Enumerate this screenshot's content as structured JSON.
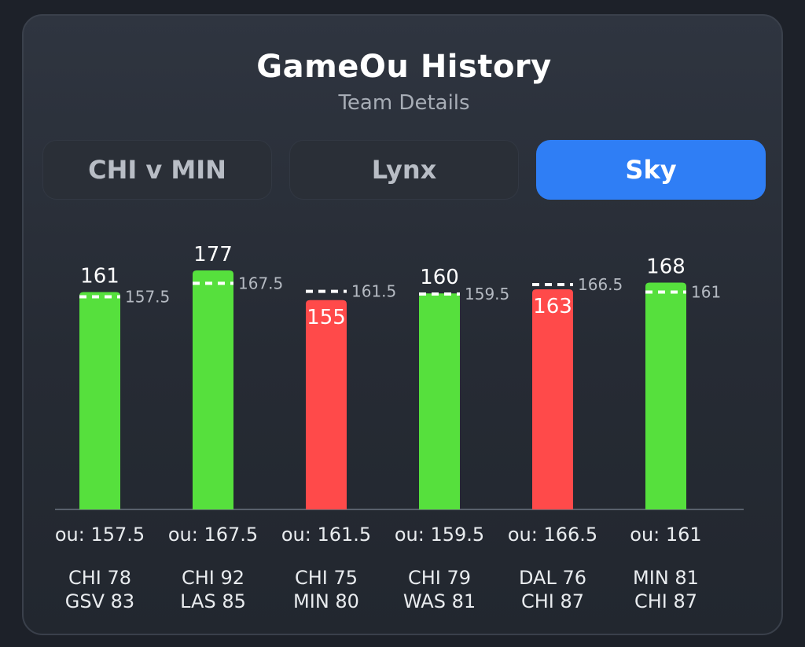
{
  "header": {
    "title": "GameOu History",
    "subtitle": "Team Details"
  },
  "tabs": [
    {
      "label": "CHI v MIN",
      "active": false
    },
    {
      "label": "Lynx",
      "active": false
    },
    {
      "label": "Sky",
      "active": true
    }
  ],
  "colors": {
    "over": "#56e03d",
    "under": "#ff4a4a",
    "accent": "#2f7ef5"
  },
  "chart_data": {
    "type": "bar",
    "title": "",
    "xlabel": "",
    "ylabel": "",
    "ylim": [
      0,
      185
    ],
    "grid": false,
    "games": [
      {
        "total": 161,
        "ou": 157.5,
        "ou_label": "157.5",
        "footer": "ou: 157.5",
        "team_a": "CHI 78",
        "team_b": "GSV 83"
      },
      {
        "total": 177,
        "ou": 167.5,
        "ou_label": "167.5",
        "footer": "ou: 167.5",
        "team_a": "CHI 92",
        "team_b": "LAS 85"
      },
      {
        "total": 155,
        "ou": 161.5,
        "ou_label": "161.5",
        "footer": "ou: 161.5",
        "team_a": "CHI 75",
        "team_b": "MIN 80"
      },
      {
        "total": 160,
        "ou": 159.5,
        "ou_label": "159.5",
        "footer": "ou: 159.5",
        "team_a": "CHI 79",
        "team_b": "WAS 81"
      },
      {
        "total": 163,
        "ou": 166.5,
        "ou_label": "166.5",
        "footer": "ou: 166.5",
        "team_a": "DAL 76",
        "team_b": "CHI 87"
      },
      {
        "total": 168,
        "ou": 161,
        "ou_label": "161",
        "footer": "ou: 161",
        "team_a": "MIN 81",
        "team_b": "CHI 87"
      }
    ]
  }
}
